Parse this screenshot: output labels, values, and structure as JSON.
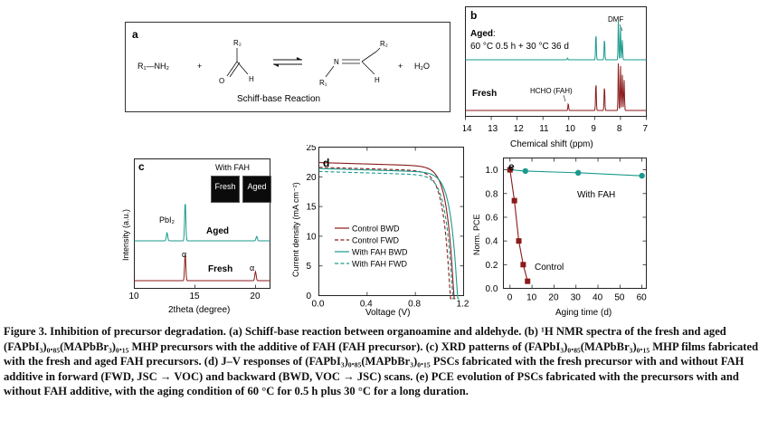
{
  "panel_a": {
    "letter": "a",
    "title": "Schiff-base Reaction",
    "amine": "R₁—NH₂",
    "plus1": "+",
    "aldehyde_r": "R₂",
    "aldehyde_h": "H",
    "aldehyde_o": "O",
    "imine_r1": "R₁",
    "imine_r2": "R₂",
    "imine_n": "N",
    "imine_h": "H",
    "plus2": "+",
    "water": "H₂O"
  },
  "panel_b": {
    "letter": "b",
    "aged_label": "Aged",
    "aged_condition": "60 °C 0.5 h + 30 °C 36 d",
    "fresh_label": "Fresh",
    "dmf_label": "DMF",
    "hcho_label": "HCHO (FAH)",
    "xlabel": "Chemical shift (ppm)",
    "ticks": [
      "14",
      "13",
      "12",
      "11",
      "10",
      "9",
      "8",
      "7"
    ],
    "colors": {
      "aged": "#1a9a8c",
      "fresh": "#8b1a1a"
    }
  },
  "panel_c": {
    "letter": "c",
    "inset_title": "With FAH",
    "inset_fresh": "Fresh",
    "inset_aged": "Aged",
    "ylabel": "Intensity (a.u.)",
    "xlabel": "2theta (degree)",
    "ticks": [
      "10",
      "15",
      "20"
    ],
    "pbi2_label": "PbI₂",
    "aged_label": "Aged",
    "fresh_label": "Fresh",
    "alpha1": "α",
    "alpha2": "α"
  },
  "panel_d": {
    "letter": "d",
    "ylabel": "Current density (mA cm⁻²)",
    "xlabel": "Voltage (V)",
    "xticks": [
      "0.0",
      "0.4",
      "0.8",
      "1.2"
    ],
    "yticks": [
      "0",
      "5",
      "10",
      "15",
      "20",
      "25"
    ],
    "legend": [
      "Control BWD",
      "Control FWD",
      "With FAH BWD",
      "With FAH FWD"
    ],
    "colors": {
      "control": "#8b1a1a",
      "fah": "#1a9a8c"
    }
  },
  "panel_e": {
    "letter": "e",
    "ylabel": "Norm. PCE",
    "xlabel": "Aging time (d)",
    "xticks": [
      "0",
      "10",
      "20",
      "30",
      "40",
      "50",
      "60"
    ],
    "yticks": [
      "0.0",
      "0.2",
      "0.4",
      "0.6",
      "0.8",
      "1.0"
    ],
    "fah_label": "With FAH",
    "control_label": "Control",
    "colors": {
      "control": "#8b1a1a",
      "fah": "#1a9a8c"
    }
  },
  "chart_data": [
    {
      "type": "line",
      "panel": "d",
      "xlabel": "Voltage (V)",
      "ylabel": "Current density (mA cm⁻²)",
      "xlim": [
        0,
        1.2
      ],
      "ylim": [
        0,
        25
      ],
      "legend_position": "bottom-left",
      "series": [
        {
          "name": "Control BWD",
          "style": "solid",
          "jsc": 22.4,
          "voc": 1.12
        },
        {
          "name": "Control FWD",
          "style": "dashed",
          "jsc": 21.6,
          "voc": 1.09
        },
        {
          "name": "With FAH BWD",
          "style": "solid",
          "jsc": 21.4,
          "voc": 1.15
        },
        {
          "name": "With FAH FWD",
          "style": "dashed",
          "jsc": 20.9,
          "voc": 1.11
        }
      ]
    },
    {
      "type": "line",
      "panel": "e",
      "xlabel": "Aging time (d)",
      "ylabel": "Norm. PCE",
      "xlim": [
        -3,
        62
      ],
      "ylim": [
        0,
        1.1
      ],
      "series": [
        {
          "name": "With FAH",
          "x": [
            0,
            7,
            31,
            60
          ],
          "y": [
            1.0,
            0.99,
            0.975,
            0.95
          ]
        },
        {
          "name": "Control",
          "x": [
            0,
            2,
            4,
            6,
            8
          ],
          "y": [
            1.0,
            0.74,
            0.4,
            0.2,
            0.06
          ]
        }
      ]
    }
  ],
  "caption": {
    "title": "Figure 3. Inhibition of precursor degradation.",
    "body": "(a) Schiff-base reaction between organoamine and aldehyde. (b) ¹H NMR spectra of the fresh and aged (FAPbI₃)₀.₈₅(MAPbBr₃)₀.₁₅ MHP precursors with the additive of FAH (FAH precursor). (c) XRD patterns of (FAPbI₃)₀.₈₅(MAPbBr₃)₀.₁₅ MHP films fabricated with the fresh and aged FAH precursors. (d) J–V responses of (FAPbI₃)₀.₈₅(MAPbBr₃)₀.₁₅ PSCs fabricated with the fresh precursor with and without FAH additive in forward (FWD, JSC → VOC) and backward (BWD, VOC → JSC) scans. (e) PCE evolution of PSCs fabricated with the precursors with and without FAH additive, with the aging condition of 60 °C for 0.5 h plus 30 °C for a long duration."
  }
}
